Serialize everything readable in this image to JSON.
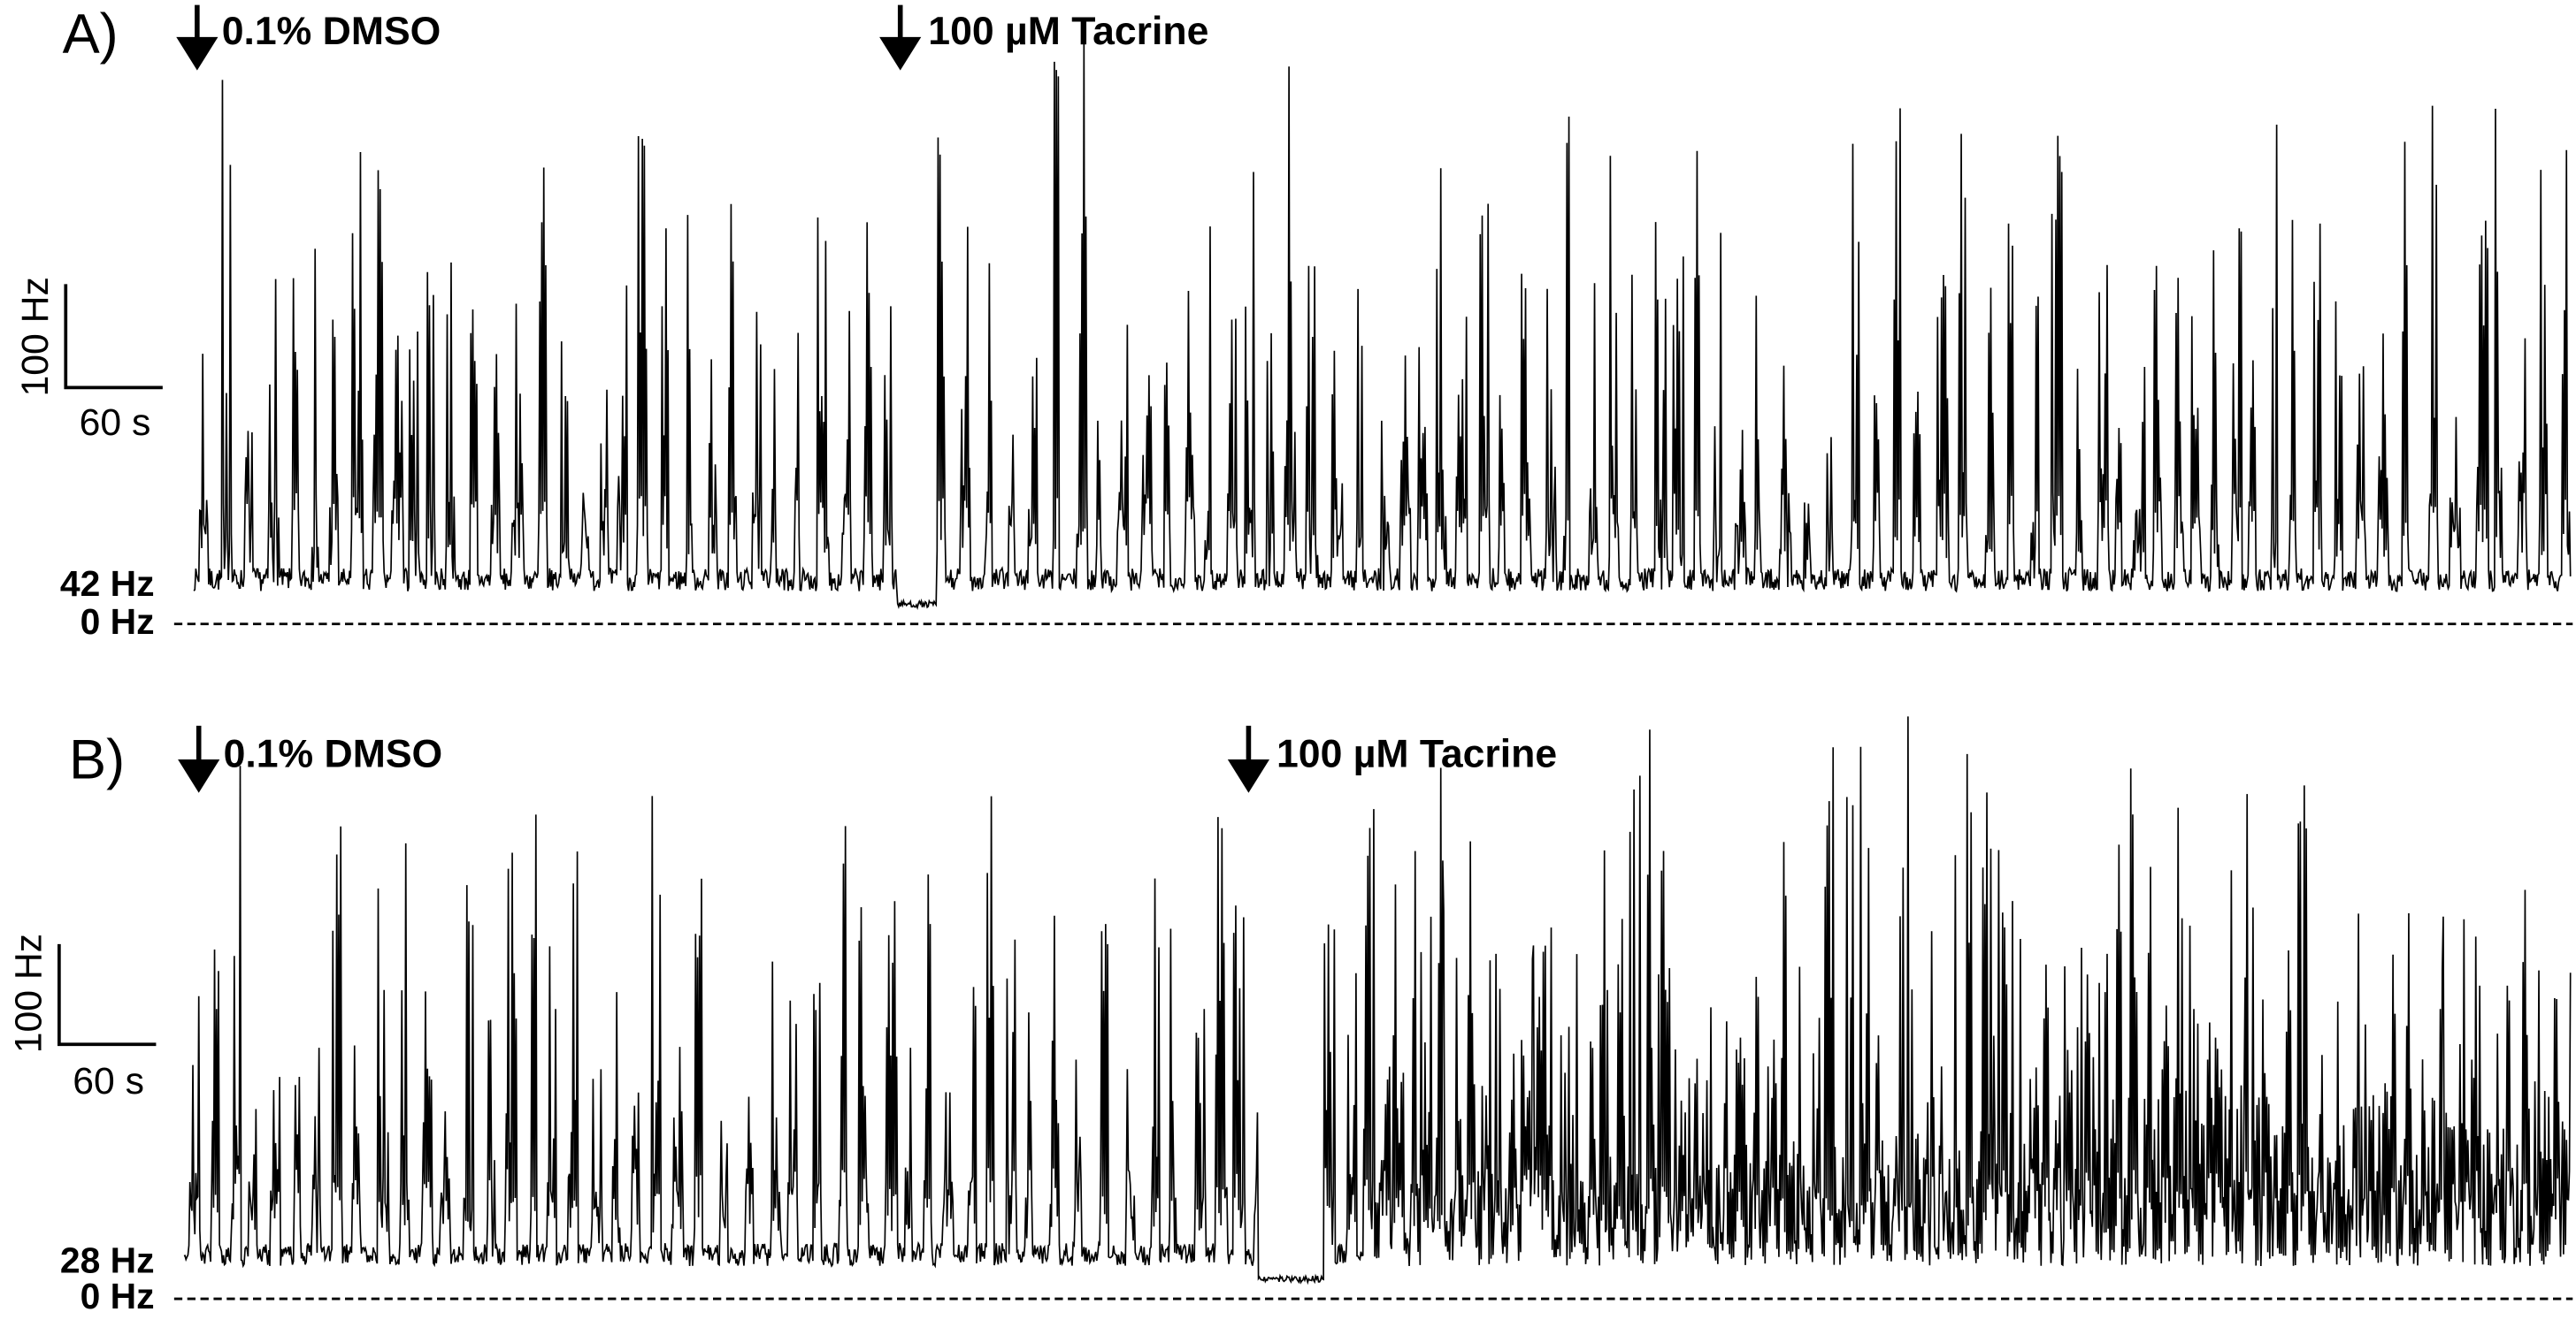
{
  "panels": [
    {
      "label": "A)",
      "annotations": [
        "0.1% DMSO",
        "100 µM Tacrine"
      ],
      "scale_bar": {
        "y": "100 Hz",
        "x": "60 s"
      },
      "baseline_label": "42 Hz",
      "zero_label": "0 Hz"
    },
    {
      "label": "B)",
      "annotations": [
        "0.1% DMSO",
        "100 µM Tacrine"
      ],
      "scale_bar": {
        "y": "100 Hz",
        "x": "60 s"
      },
      "baseline_label": "28 Hz",
      "zero_label": "0 Hz"
    }
  ]
}
